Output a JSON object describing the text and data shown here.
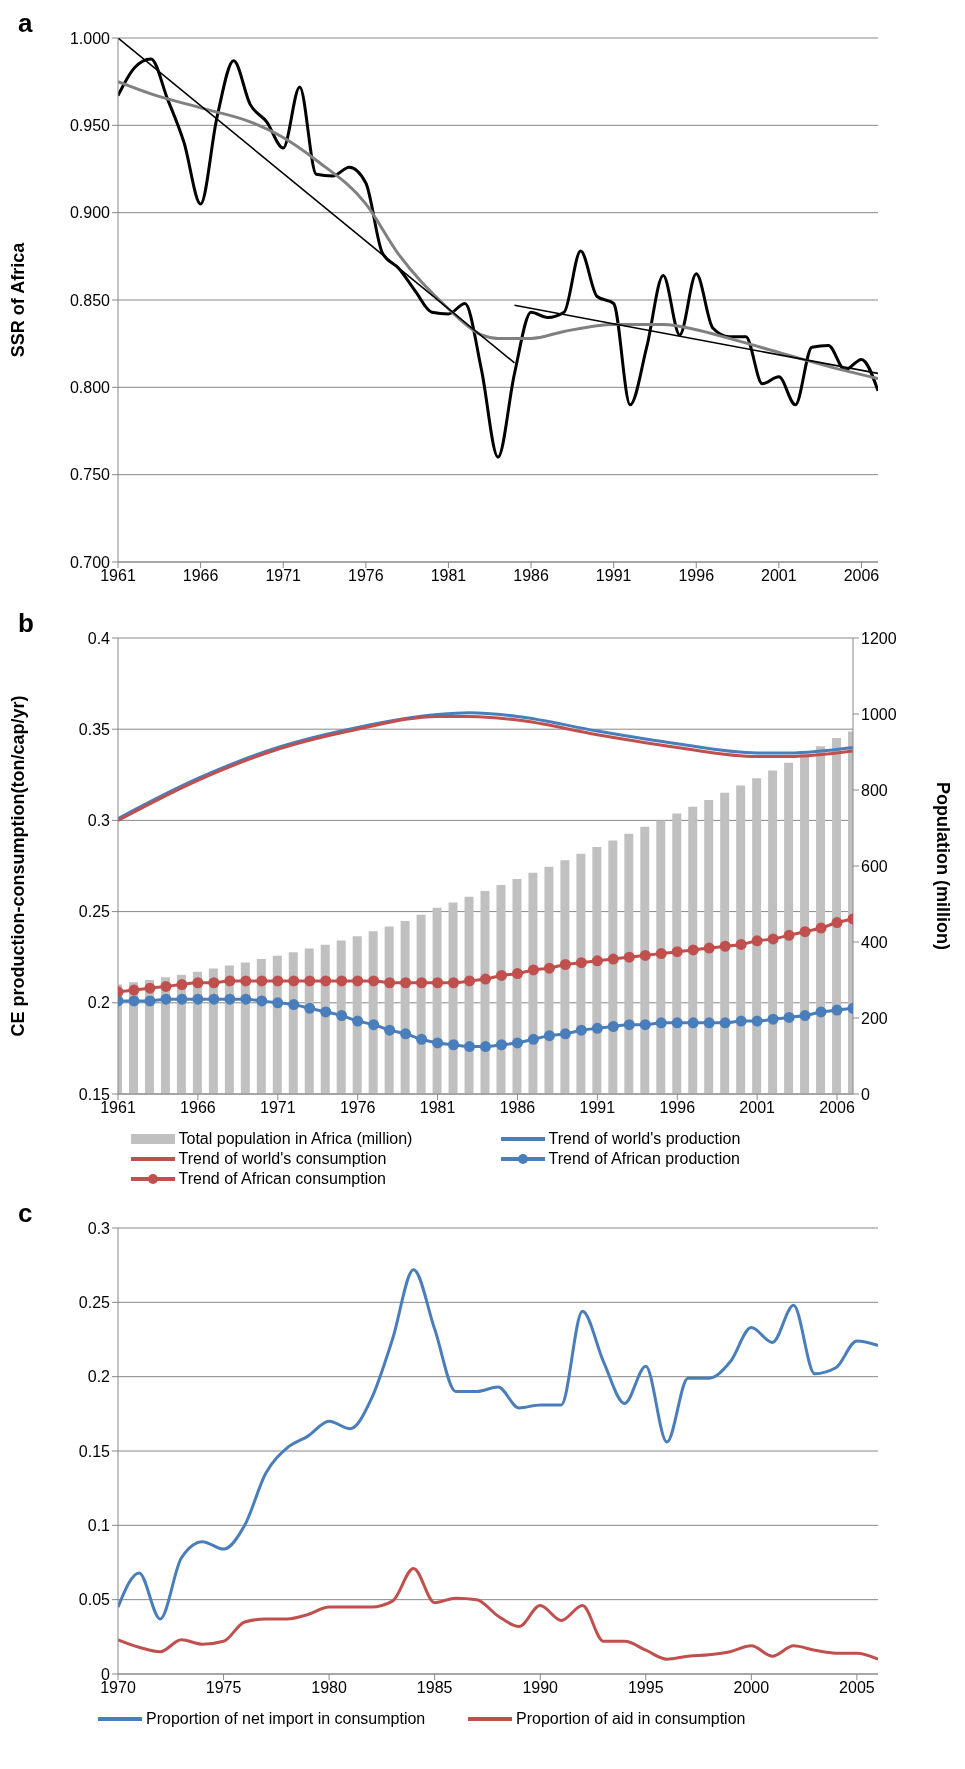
{
  "chart_data": [
    {
      "type": "line",
      "title": "a",
      "ylabel": "SSR of Africa",
      "x": [
        1961,
        1962,
        1963,
        1964,
        1965,
        1966,
        1967,
        1968,
        1969,
        1970,
        1971,
        1972,
        1973,
        1974,
        1975,
        1976,
        1977,
        1978,
        1979,
        1980,
        1981,
        1982,
        1983,
        1984,
        1985,
        1986,
        1987,
        1988,
        1989,
        1990,
        1991,
        1992,
        1993,
        1994,
        1995,
        1996,
        1997,
        1998,
        1999,
        2000,
        2001,
        2002,
        2003,
        2004,
        2005,
        2006,
        2007
      ],
      "xlim": [
        1961,
        2007
      ],
      "xticks": [
        1961,
        1966,
        1971,
        1976,
        1981,
        1986,
        1991,
        1996,
        2001,
        2006
      ],
      "ylim": [
        0.7,
        1.0
      ],
      "yticks": [
        {
          "value": 0.7,
          "label": "0.700"
        },
        {
          "value": 0.75,
          "label": "0.750"
        },
        {
          "value": 0.8,
          "label": "0.800"
        },
        {
          "value": 0.85,
          "label": "0.850"
        },
        {
          "value": 0.9,
          "label": "0.900"
        },
        {
          "value": 0.95,
          "label": "0.950"
        },
        {
          "value": 1.0,
          "label": "1.000"
        }
      ],
      "grid": "y",
      "legend": false,
      "marker": "none",
      "line_style": "solid",
      "series": [
        {
          "color": "#000000",
          "values": [
            0.967,
            0.983,
            0.988,
            0.965,
            0.94,
            0.905,
            0.955,
            0.987,
            0.962,
            0.952,
            0.937,
            0.972,
            0.922,
            0.921,
            0.926,
            0.917,
            0.877,
            0.868,
            0.855,
            0.843,
            0.842,
            0.848,
            0.81,
            0.76,
            0.808,
            0.843,
            0.84,
            0.843,
            0.878,
            0.852,
            0.848,
            0.79,
            0.823,
            0.864,
            0.83,
            0.865,
            0.834,
            0.829,
            0.829,
            0.802,
            0.806,
            0.79,
            0.823,
            0.824,
            0.81,
            0.816,
            0.798
          ]
        },
        {
          "color": "#808080",
          "x": [
            1961,
            1963,
            1966,
            1969,
            1971,
            1973,
            1976,
            1978,
            1981,
            1983,
            1984,
            1986,
            1988,
            1991,
            1994,
            1996,
            1998,
            2001,
            2004,
            2007
          ],
          "values": [
            0.975,
            0.968,
            0.96,
            0.952,
            0.943,
            0.93,
            0.905,
            0.876,
            0.845,
            0.83,
            0.828,
            0.828,
            0.832,
            0.836,
            0.836,
            0.833,
            0.828,
            0.82,
            0.812,
            0.805
          ]
        },
        {
          "color": "#000000",
          "x": [
            1961,
            1985
          ],
          "values": [
            1.0,
            0.814
          ]
        },
        {
          "color": "#000000",
          "x": [
            1985,
            2007
          ],
          "values": [
            0.847,
            0.808
          ]
        }
      ]
    },
    {
      "type": "line",
      "title": "b",
      "ylabel": "CE production-consumption(ton/cap/yr)",
      "y2label": "Population (million)",
      "x": [
        1961,
        1962,
        1963,
        1964,
        1965,
        1966,
        1967,
        1968,
        1969,
        1970,
        1971,
        1972,
        1973,
        1974,
        1975,
        1976,
        1977,
        1978,
        1979,
        1980,
        1981,
        1982,
        1983,
        1984,
        1985,
        1986,
        1987,
        1988,
        1989,
        1990,
        1991,
        1992,
        1993,
        1994,
        1995,
        1996,
        1997,
        1998,
        1999,
        2000,
        2001,
        2002,
        2003,
        2004,
        2005,
        2006,
        2007
      ],
      "xlim": [
        1961,
        2007
      ],
      "xticks": [
        1961,
        1966,
        1971,
        1976,
        1981,
        1986,
        1991,
        1996,
        2001,
        2006
      ],
      "ylim": [
        0.15,
        0.4
      ],
      "yticks": [
        0.15,
        0.2,
        0.25,
        0.3,
        0.35,
        0.4
      ],
      "y2lim": [
        0,
        1200
      ],
      "y2ticks": [
        0,
        200,
        400,
        600,
        800,
        1000,
        1200
      ],
      "grid": "y",
      "legend": "bottom",
      "marker": "none",
      "line_style": "solid",
      "series": [
        {
          "name": "Total population in Africa (million)",
          "type": "bar",
          "axis": "y2",
          "color": "#c0c0c0",
          "values": [
            288,
            294,
            300,
            307,
            314,
            322,
            330,
            338,
            346,
            355,
            364,
            373,
            383,
            393,
            404,
            415,
            428,
            441,
            455,
            472,
            490,
            504,
            519,
            534,
            550,
            566,
            582,
            598,
            615,
            632,
            650,
            667,
            685,
            703,
            720,
            738,
            756,
            774,
            793,
            812,
            831,
            851,
            872,
            894,
            915,
            937,
            954
          ]
        },
        {
          "name": "Trend of world's production",
          "color": "#4a7ebb",
          "x": [
            1961,
            1966,
            1971,
            1976,
            1981,
            1983,
            1986,
            1991,
            1996,
            2001,
            2003,
            2007
          ],
          "values": [
            0.301,
            0.323,
            0.34,
            0.351,
            0.358,
            0.359,
            0.357,
            0.349,
            0.342,
            0.337,
            0.337,
            0.34
          ]
        },
        {
          "name": "Trend of world's consumption",
          "color": "#c0504d",
          "x": [
            1961,
            1966,
            1971,
            1976,
            1981,
            1983,
            1986,
            1991,
            1996,
            2001,
            2003,
            2007
          ],
          "values": [
            0.3,
            0.322,
            0.339,
            0.35,
            0.357,
            0.357,
            0.355,
            0.347,
            0.34,
            0.335,
            0.335,
            0.338
          ]
        },
        {
          "name": "Trend of African production",
          "color": "#4a7ebb",
          "marker": "circle",
          "values": [
            0.201,
            0.201,
            0.201,
            0.202,
            0.202,
            0.202,
            0.202,
            0.202,
            0.202,
            0.201,
            0.2,
            0.199,
            0.197,
            0.195,
            0.193,
            0.19,
            0.188,
            0.185,
            0.183,
            0.18,
            0.178,
            0.177,
            0.176,
            0.176,
            0.177,
            0.178,
            0.18,
            0.182,
            0.183,
            0.185,
            0.186,
            0.187,
            0.188,
            0.188,
            0.189,
            0.189,
            0.189,
            0.189,
            0.189,
            0.19,
            0.19,
            0.191,
            0.192,
            0.193,
            0.195,
            0.196,
            0.197
          ]
        },
        {
          "name": "Trend of African consumption",
          "color": "#c0504d",
          "marker": "circle",
          "values": [
            0.206,
            0.207,
            0.208,
            0.209,
            0.21,
            0.211,
            0.211,
            0.212,
            0.212,
            0.212,
            0.212,
            0.212,
            0.212,
            0.212,
            0.212,
            0.212,
            0.212,
            0.211,
            0.211,
            0.211,
            0.211,
            0.211,
            0.212,
            0.213,
            0.215,
            0.216,
            0.218,
            0.219,
            0.221,
            0.222,
            0.223,
            0.224,
            0.225,
            0.226,
            0.227,
            0.228,
            0.229,
            0.23,
            0.231,
            0.232,
            0.234,
            0.235,
            0.237,
            0.239,
            0.241,
            0.244,
            0.246
          ]
        }
      ]
    },
    {
      "type": "line",
      "title": "c",
      "x": [
        1970,
        1971,
        1972,
        1973,
        1974,
        1975,
        1976,
        1977,
        1978,
        1979,
        1980,
        1981,
        1982,
        1983,
        1984,
        1985,
        1986,
        1987,
        1988,
        1989,
        1990,
        1991,
        1992,
        1993,
        1994,
        1995,
        1996,
        1997,
        1998,
        1999,
        2000,
        2001,
        2002,
        2003,
        2004,
        2005,
        2006
      ],
      "xlim": [
        1970,
        2006
      ],
      "xticks": [
        1970,
        1975,
        1980,
        1985,
        1990,
        1995,
        2000,
        2005
      ],
      "ylim": [
        0,
        0.3
      ],
      "yticks": [
        0,
        0.05,
        0.1,
        0.15,
        0.2,
        0.25,
        0.3
      ],
      "grid": "y",
      "legend": "bottom",
      "marker": "none",
      "line_style": "solid",
      "series": [
        {
          "name": "Proportion of net import in consumption",
          "color": "#4a7ebb",
          "values": [
            0.045,
            0.068,
            0.037,
            0.078,
            0.089,
            0.084,
            0.1,
            0.135,
            0.152,
            0.16,
            0.17,
            0.165,
            0.185,
            0.225,
            0.272,
            0.232,
            0.19,
            0.19,
            0.193,
            0.179,
            0.181,
            0.181,
            0.244,
            0.21,
            0.182,
            0.207,
            0.156,
            0.199,
            0.199,
            0.21,
            0.233,
            0.223,
            0.248,
            0.202,
            0.206,
            0.224,
            0.221
          ]
        },
        {
          "name": "Proportion of aid in consumption",
          "color": "#c0504d",
          "values": [
            0.023,
            0.018,
            0.015,
            0.023,
            0.02,
            0.022,
            0.035,
            0.037,
            0.037,
            0.04,
            0.045,
            0.045,
            0.045,
            0.049,
            0.071,
            0.048,
            0.051,
            0.05,
            0.039,
            0.032,
            0.046,
            0.036,
            0.046,
            0.022,
            0.022,
            0.016,
            0.01,
            0.012,
            0.013,
            0.015,
            0.019,
            0.012,
            0.019,
            0.016,
            0.014,
            0.014,
            0.01
          ]
        }
      ]
    }
  ]
}
